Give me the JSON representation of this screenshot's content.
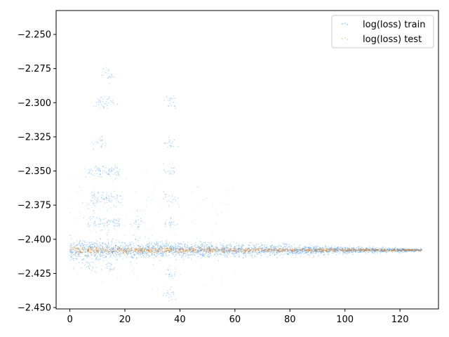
{
  "chart_data": {
    "type": "scatter",
    "title": "",
    "xlabel": "",
    "ylabel": "",
    "xlim": [
      -5,
      134
    ],
    "ylim": [
      -2.451,
      -2.2325
    ],
    "x_ticks": [
      0,
      20,
      40,
      60,
      80,
      100,
      120
    ],
    "x_tick_labels": [
      "0",
      "20",
      "40",
      "60",
      "80",
      "100",
      "120"
    ],
    "y_ticks": [
      -2.45,
      -2.425,
      -2.4,
      -2.375,
      -2.35,
      -2.325,
      -2.3,
      -2.275,
      -2.25
    ],
    "y_tick_labels": [
      "−2.450",
      "−2.425",
      "−2.400",
      "−2.375",
      "−2.350",
      "−2.325",
      "−2.300",
      "−2.275",
      "−2.250"
    ],
    "grid": false,
    "legend_position": "top-right",
    "series": [
      {
        "name": "log(loss) train",
        "color": "#1f77b4",
        "marker_color": "#0a84ff",
        "x_range": [
          0,
          128
        ],
        "center_y": -2.408,
        "spread_start": 0.004,
        "spread_end": 0.0005,
        "outlier_clusters": [
          {
            "x": 8,
            "y": [
              -2.35,
              -2.37,
              -2.388,
              -2.42
            ]
          },
          {
            "x": 11,
            "y": [
              -2.3,
              -2.33,
              -2.35,
              -2.37,
              -2.388
            ]
          },
          {
            "x": 14,
            "y": [
              -2.28,
              -2.3,
              -2.35,
              -2.37,
              -2.388,
              -2.42
            ]
          },
          {
            "x": 17,
            "y": [
              -2.35,
              -2.37,
              -2.388
            ]
          },
          {
            "x": 24,
            "y": [
              -2.388
            ]
          },
          {
            "x": 36.5,
            "y": [
              -2.3,
              -2.33,
              -2.35,
              -2.37,
              -2.388,
              -2.425,
              -2.44
            ]
          }
        ]
      },
      {
        "name": "log(loss) test",
        "color": "#ff7f0e",
        "marker_color": "#e08a2e",
        "x_range": [
          0,
          128
        ],
        "center_y": -2.408,
        "spread_start": 0.0015,
        "spread_end": 0.0003
      }
    ]
  }
}
